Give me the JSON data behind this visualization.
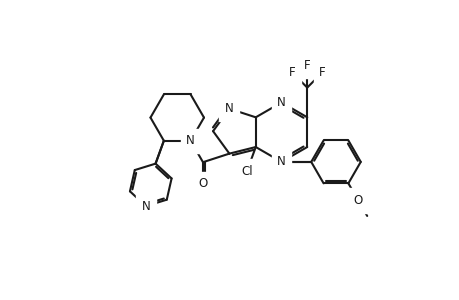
{
  "bg_color": "#ffffff",
  "line_color": "#1a1a1a",
  "line_width": 1.5,
  "font_size": 8.5,
  "figsize": [
    4.6,
    3.0
  ],
  "dpi": 100,
  "labels": {
    "N": "N",
    "O": "O",
    "Cl": "Cl",
    "F": "F"
  }
}
